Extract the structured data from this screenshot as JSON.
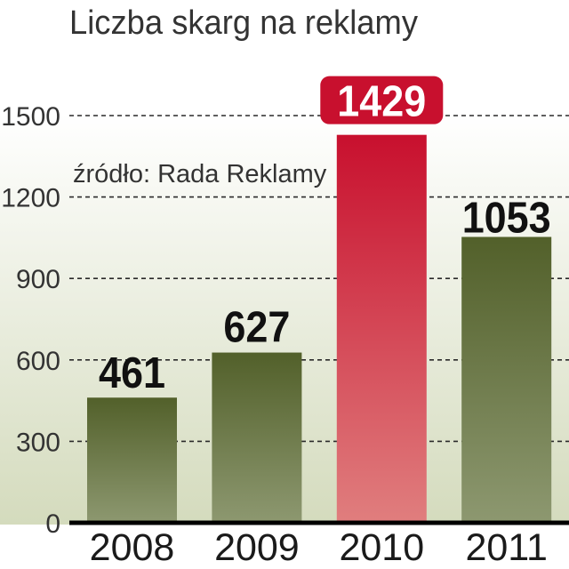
{
  "chart_data": {
    "type": "bar",
    "title": "Liczba skarg na reklamy",
    "source": "źródło: Rada Reklamy",
    "categories": [
      "2008",
      "2009",
      "2010",
      "2011"
    ],
    "values": [
      461,
      627,
      1429,
      1053
    ],
    "highlighted": [
      false,
      false,
      true,
      false
    ],
    "ylim": [
      0,
      1500
    ],
    "y_ticks": [
      0,
      300,
      600,
      900,
      1200,
      1500
    ],
    "grid": true,
    "data_labels": true,
    "legend": false,
    "colors": {
      "bar_top": "#52602a",
      "bar_bottom": "#8d9870",
      "highlight_top": "#c8102e",
      "highlight_bottom": "#e07e7e",
      "highlight_label": "#ffffff",
      "data_label": "#111111",
      "background_top": "#ffffff",
      "background_bottom": "#d4dbbd"
    }
  }
}
